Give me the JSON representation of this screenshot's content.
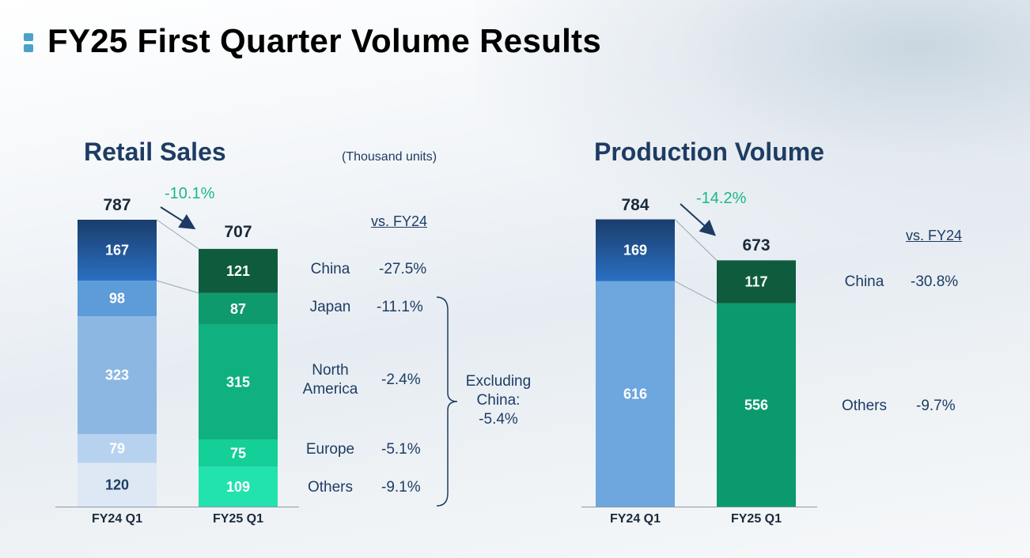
{
  "page": {
    "title": "FY25 First Quarter Volume Results"
  },
  "units_note": "(Thousand units)",
  "chart_data": [
    {
      "type": "bar",
      "stacked": true,
      "title": "Retail Sales",
      "categories": [
        "FY24 Q1",
        "FY25 Q1"
      ],
      "totals": [
        787,
        707
      ],
      "total_labels": [
        "787",
        "707"
      ],
      "change": "-10.1%",
      "vs_label": "vs. FY24",
      "series": [
        {
          "name": "Others",
          "values": [
            120,
            109
          ],
          "labels": [
            "120",
            "109"
          ],
          "change": "-9.1%",
          "colors": [
            "#dde8f4",
            "#22e3ad"
          ],
          "text_colors": [
            "#1e3c63",
            "#ffffff"
          ]
        },
        {
          "name": "Europe",
          "values": [
            79,
            75
          ],
          "labels": [
            "79",
            "75"
          ],
          "change": "-5.1%",
          "colors": [
            "#b7d2ee",
            "#14cf98"
          ],
          "text_colors": [
            "#ffffff",
            "#ffffff"
          ]
        },
        {
          "name": "North America",
          "values": [
            323,
            315
          ],
          "labels": [
            "323",
            "315"
          ],
          "change": "-2.4%",
          "colors": [
            "#8cb7e3",
            "#0fb181"
          ],
          "text_colors": [
            "#ffffff",
            "#ffffff"
          ]
        },
        {
          "name": "Japan",
          "values": [
            98,
            87
          ],
          "labels": [
            "98",
            "87"
          ],
          "change": "-11.1%",
          "colors": [
            "#5d9bd9",
            "#0f9a6d"
          ],
          "text_colors": [
            "#ffffff",
            "#ffffff"
          ]
        },
        {
          "name": "China",
          "values": [
            167,
            121
          ],
          "labels": [
            "167",
            "121"
          ],
          "change": "-27.5%",
          "colors": [
            "top:#1a3d6c|bottom:#2a6fc2",
            "#0e5c3d"
          ],
          "text_colors": [
            "#ffffff",
            "#ffffff"
          ]
        }
      ],
      "series_labels": [
        "China",
        "Japan",
        "North America",
        "Europe",
        "Others"
      ],
      "excluding_china": {
        "line1": "Excluding",
        "line2": "China:",
        "value": "-5.4%"
      }
    },
    {
      "type": "bar",
      "stacked": true,
      "title": "Production Volume",
      "categories": [
        "FY24 Q1",
        "FY25 Q1"
      ],
      "totals": [
        784,
        673
      ],
      "total_labels": [
        "784",
        "673"
      ],
      "change": "-14.2%",
      "vs_label": "vs. FY24",
      "series": [
        {
          "name": "Others",
          "values": [
            616,
            556
          ],
          "labels": [
            "616",
            "556"
          ],
          "change": "-9.7%",
          "colors": [
            "#6ea6de",
            "#0b9a6e"
          ],
          "text_colors": [
            "#ffffff",
            "#ffffff"
          ]
        },
        {
          "name": "China",
          "values": [
            169,
            117
          ],
          "labels": [
            "169",
            "117"
          ],
          "change": "-30.8%",
          "colors": [
            "top:#1a3d6c|bottom:#2a6fc2",
            "#0e5c3d"
          ],
          "text_colors": [
            "#ffffff",
            "#ffffff"
          ]
        }
      ]
    }
  ]
}
